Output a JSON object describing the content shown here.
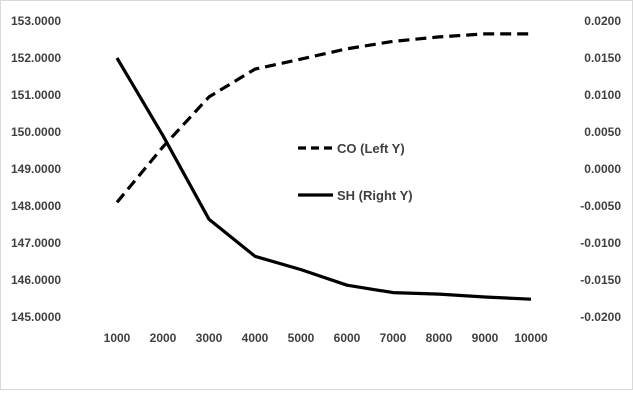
{
  "chart_data": {
    "type": "line",
    "x": [
      1000,
      2000,
      3000,
      4000,
      5000,
      6000,
      7000,
      8000,
      9000,
      10000
    ],
    "x_tick_labels": [
      "1000",
      "2000",
      "3000",
      "4000",
      "5000",
      "6000",
      "7000",
      "8000",
      "9000",
      "10000"
    ],
    "y_left": {
      "ylim": [
        145.0,
        153.0
      ],
      "ticks": [
        145,
        146,
        147,
        148,
        149,
        150,
        151,
        152,
        153
      ],
      "tick_labels": [
        "145.0000",
        "146.0000",
        "147.0000",
        "148.0000",
        "149.0000",
        "150.0000",
        "151.0000",
        "152.0000",
        "153.0000"
      ]
    },
    "y_right": {
      "ylim": [
        -0.02,
        0.02
      ],
      "ticks": [
        -0.02,
        -0.015,
        -0.01,
        -0.005,
        0,
        0.005,
        0.01,
        0.015,
        0.02
      ],
      "tick_labels": [
        "-0.0200",
        "-0.0150",
        "-0.0100",
        "-0.0050",
        "0.0000",
        "0.0050",
        "0.0100",
        "0.0150",
        "0.0200"
      ]
    },
    "series": [
      {
        "name": "CO (Left Y)",
        "axis": "left",
        "style": "dashed",
        "color": "#000000",
        "values": [
          148.1,
          149.6,
          150.95,
          151.7,
          151.97,
          152.25,
          152.45,
          152.57,
          152.65,
          152.65
        ]
      },
      {
        "name": "SH (Right Y)",
        "axis": "right",
        "style": "solid",
        "color": "#000000",
        "values": [
          0.015,
          0.0045,
          -0.0068,
          -0.0118,
          -0.0136,
          -0.0157,
          -0.0167,
          -0.0169,
          -0.0173,
          -0.0176
        ]
      }
    ],
    "grid": false,
    "legend_placement": "center-right"
  }
}
